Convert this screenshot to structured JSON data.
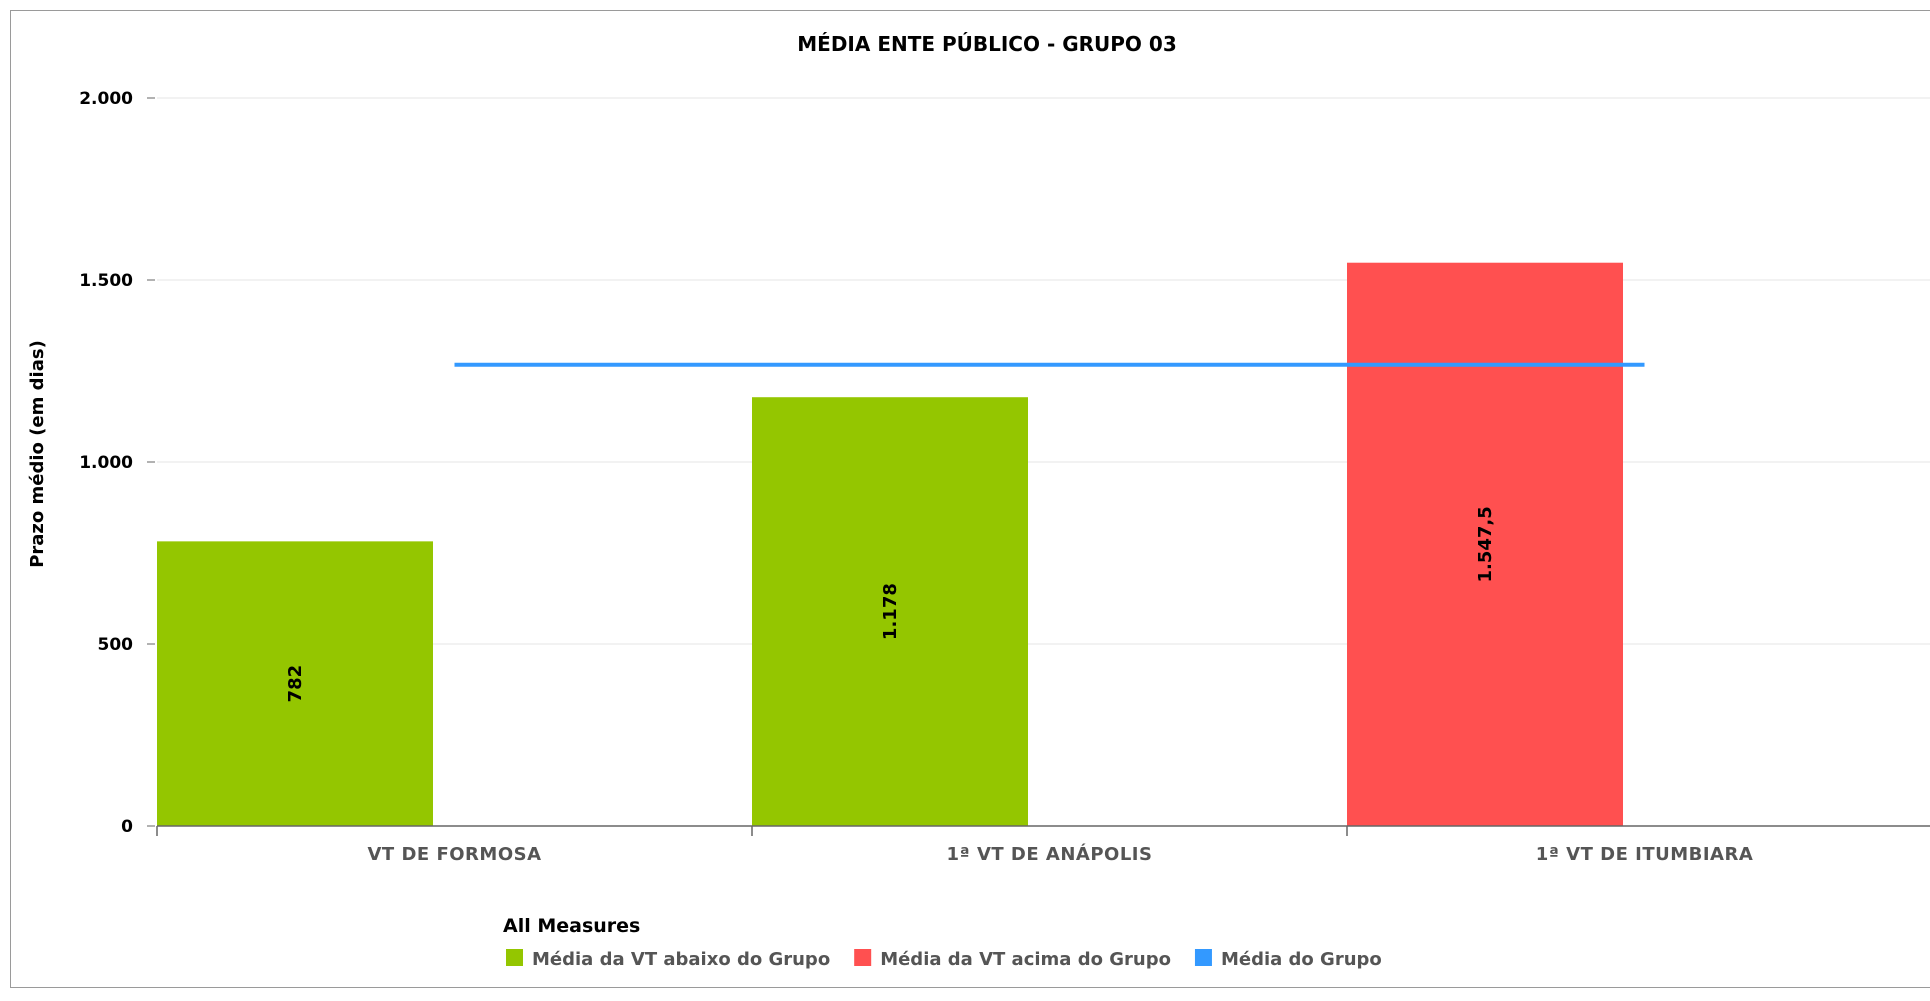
{
  "chart_data": {
    "type": "bar",
    "title": "MÉDIA ENTE PÚBLICO - GRUPO 03",
    "ylabel": "Prazo médio (em dias)",
    "xlabel": "",
    "ylim": [
      0,
      2000
    ],
    "yticks": [
      0,
      500,
      1000,
      1500,
      2000
    ],
    "ytick_labels": [
      "0",
      "500",
      "1.000",
      "1.500",
      "2.000"
    ],
    "grid": true,
    "categories": [
      "VT DE FORMOSA",
      "1ª VT DE ANÁPOLIS",
      "1ª VT DE ITUMBIARA"
    ],
    "series": [
      {
        "name": "Média da VT abaixo do Grupo",
        "color": "#94c600",
        "values": [
          782,
          1178,
          null
        ],
        "labels": [
          "782",
          "1.178",
          ""
        ]
      },
      {
        "name": "Média da VT acima do Grupo",
        "color": "#ff5050",
        "values": [
          null,
          null,
          1547.5
        ],
        "labels": [
          "",
          "",
          "1.547,5"
        ]
      },
      {
        "name": "Média do Grupo",
        "color": "#3399ff",
        "type": "line",
        "values": [
          1267,
          1267,
          1267
        ]
      }
    ],
    "legend": {
      "title": "All Measures",
      "position": "bottom-center"
    }
  }
}
